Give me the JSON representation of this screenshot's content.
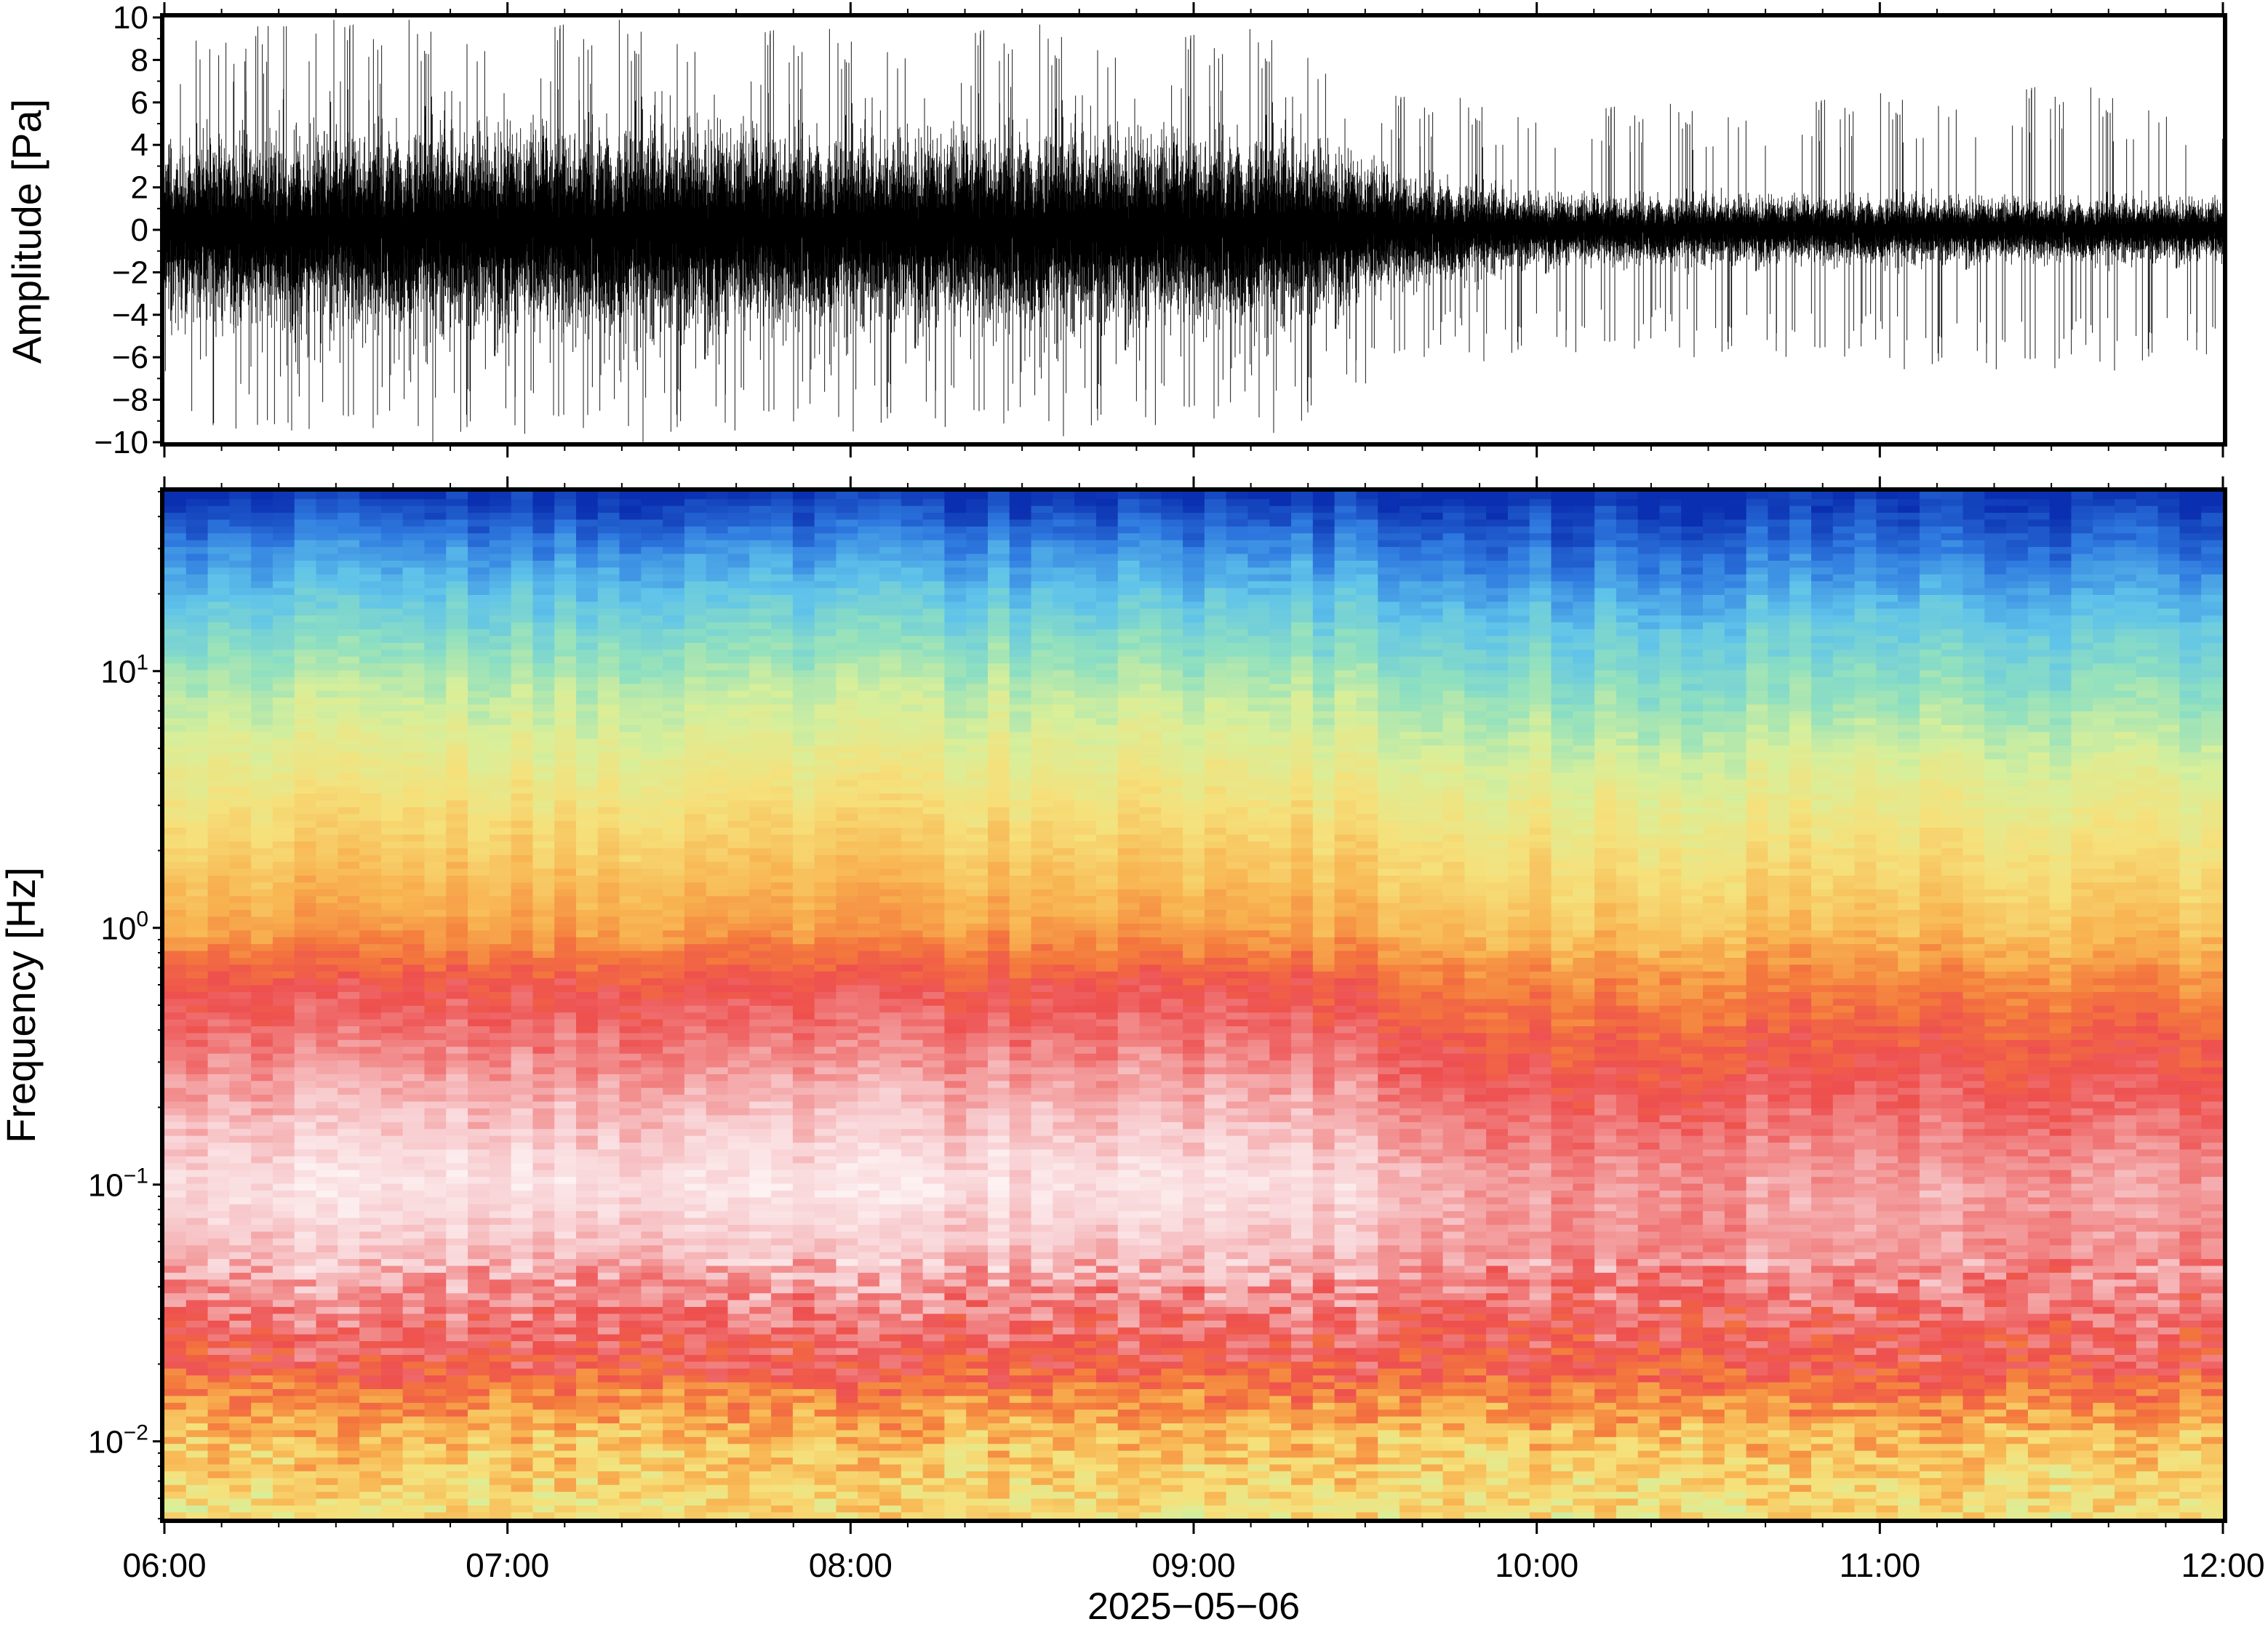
{
  "chart_data": [
    {
      "type": "line",
      "panel": "waveform",
      "ylabel": "Amplitude [Pa]",
      "ylim": [
        -10,
        10
      ],
      "yticks": [
        -10,
        -8,
        -6,
        -4,
        -2,
        0,
        2,
        4,
        6,
        8,
        10
      ],
      "yticklabels": [
        "−10",
        "−8",
        "−6",
        "−4",
        "−2",
        "0",
        "2",
        "4",
        "6",
        "8",
        "10"
      ],
      "xlim_hours": [
        6,
        12
      ],
      "envelope": {
        "x_hours": [
          6.0,
          6.5,
          7.0,
          7.5,
          8.0,
          8.5,
          9.0,
          9.3,
          9.6,
          10.0,
          10.5,
          11.0,
          11.5,
          12.0
        ],
        "half_width_pa": [
          4.0,
          4.5,
          4.6,
          4.8,
          4.2,
          4.5,
          4.3,
          4.2,
          2.6,
          1.6,
          1.5,
          1.5,
          1.4,
          1.4
        ],
        "peak_pa": [
          9.5,
          10.0,
          10.0,
          10.0,
          9.5,
          9.8,
          9.5,
          9.6,
          6.5,
          6.0,
          6.0,
          6.5,
          7.0,
          6.0
        ]
      },
      "grid": false
    },
    {
      "type": "heatmap",
      "panel": "spectrogram",
      "xlabel": "2025−05−06",
      "ylabel": "Frequency [Hz]",
      "yscale": "log",
      "ylim": [
        0.005,
        50
      ],
      "yticks": [
        0.01,
        0.1,
        1,
        10
      ],
      "yticklabels": [
        {
          "base": "10",
          "exp": "−2"
        },
        {
          "base": "10",
          "exp": "−1"
        },
        {
          "base": "10",
          "exp": "0"
        },
        {
          "base": "10",
          "exp": "1"
        }
      ],
      "xlim_hours": [
        6,
        12
      ],
      "xticks_hours": [
        6,
        7,
        8,
        9,
        10,
        11,
        12
      ],
      "xticklabels": [
        "06:00",
        "07:00",
        "08:00",
        "09:00",
        "10:00",
        "11:00",
        "12:00"
      ],
      "colormap": [
        "#0a2fb0",
        "#2f7be0",
        "#5fc3ea",
        "#8fe0c0",
        "#d8ef9a",
        "#f6e07a",
        "#f8b451",
        "#f47a3c",
        "#ee4f4f",
        "#f28c8c",
        "#f8cfd2",
        "#fdf1f2"
      ],
      "band_profile": {
        "freq_hz": [
          50,
          30,
          15,
          8,
          4,
          2,
          1,
          0.6,
          0.4,
          0.2,
          0.1,
          0.05,
          0.03,
          0.02,
          0.015,
          0.01,
          0.005
        ],
        "level_before_0930": [
          0.0,
          0.12,
          0.24,
          0.34,
          0.42,
          0.5,
          0.58,
          0.72,
          0.78,
          0.88,
          0.96,
          0.88,
          0.78,
          0.72,
          0.62,
          0.52,
          0.45
        ],
        "level_after_0930": [
          0.0,
          0.08,
          0.2,
          0.28,
          0.38,
          0.45,
          0.52,
          0.62,
          0.68,
          0.76,
          0.84,
          0.82,
          0.76,
          0.72,
          0.62,
          0.52,
          0.45
        ]
      },
      "grid": false
    }
  ]
}
